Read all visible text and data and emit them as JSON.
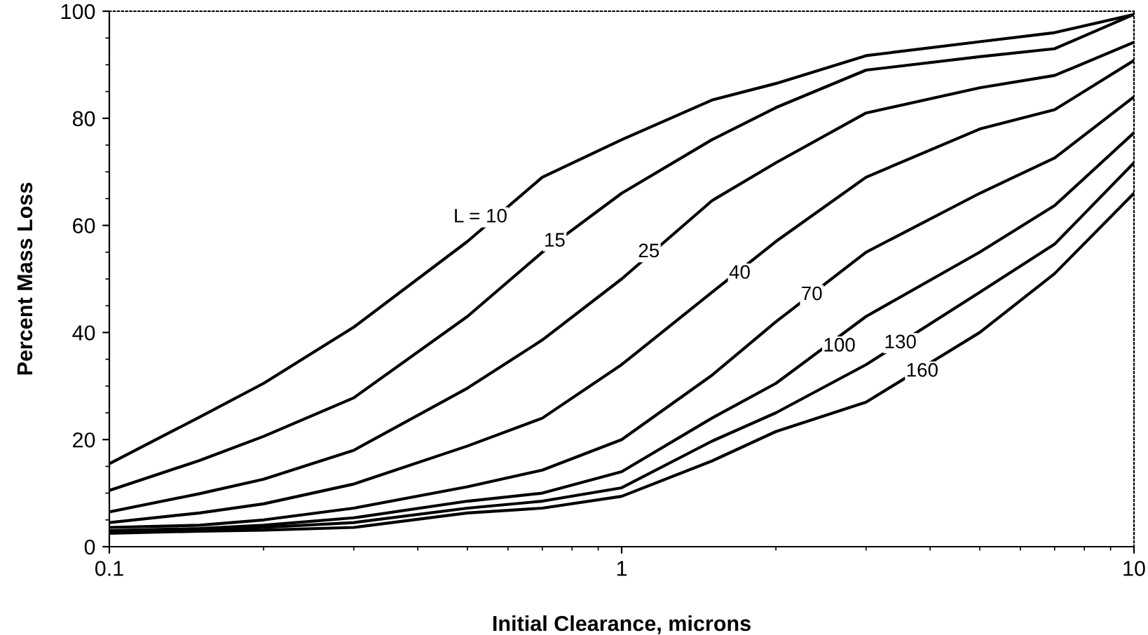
{
  "chart_data": {
    "type": "line",
    "xlabel": "Initial Clearance, microns",
    "ylabel": "Percent Mass Loss",
    "log": "x",
    "x": [
      0.1,
      0.15,
      0.2,
      0.3,
      0.5,
      0.7,
      1,
      1.5,
      2,
      3,
      5,
      7,
      10
    ],
    "xlim": [
      0.1,
      10
    ],
    "xticks": [
      0.1,
      1,
      10
    ],
    "ylim": [
      0,
      100
    ],
    "yticks": [
      0,
      20,
      40,
      60,
      80,
      100
    ],
    "grid": false,
    "marker": "none",
    "line_style": "solid",
    "series": [
      {
        "color": "#000000",
        "values": [
          15.5,
          24.2,
          30.5,
          41,
          57,
          69,
          76,
          83.4,
          86.5,
          91.7,
          94.3,
          96,
          99.4
        ]
      },
      {
        "color": "#000000",
        "values": [
          10.5,
          16.1,
          20.6,
          27.8,
          43,
          55,
          66,
          76,
          82,
          89,
          91.5,
          93,
          99.4
        ]
      },
      {
        "color": "#000000",
        "values": [
          6.5,
          9.9,
          12.6,
          18,
          29.6,
          38.6,
          50,
          64.6,
          71.7,
          81,
          85.7,
          88,
          94.2
        ]
      },
      {
        "color": "#000000",
        "values": [
          4.5,
          6.3,
          8,
          11.7,
          18.8,
          24,
          34,
          47.5,
          57,
          69,
          78,
          81.6,
          90.8
        ]
      },
      {
        "color": "#000000",
        "values": [
          3.6,
          4,
          5,
          7.2,
          11.2,
          14.3,
          20,
          32,
          42,
          55,
          66,
          72.6,
          84
        ]
      },
      {
        "color": "#000000",
        "values": [
          3,
          3.4,
          4,
          5.4,
          8.5,
          10,
          14,
          24,
          30.5,
          43,
          55,
          63.7,
          77.3
        ]
      },
      {
        "color": "#000000",
        "values": [
          2.7,
          3.1,
          3.6,
          4.5,
          7.2,
          8.5,
          11,
          19.7,
          25,
          34,
          47.5,
          56.5,
          71.7
        ]
      },
      {
        "color": "#000000",
        "values": [
          2.5,
          2.9,
          3.1,
          3.6,
          6.3,
          7.2,
          9.4,
          16,
          21.5,
          27,
          40,
          51,
          66
        ]
      }
    ],
    "annotations": [
      {
        "text": "L = 10",
        "x": 0.53,
        "y": 61.5
      },
      {
        "text": "15",
        "x": 0.74,
        "y": 57
      },
      {
        "text": "25",
        "x": 1.13,
        "y": 55
      },
      {
        "text": "40",
        "x": 1.7,
        "y": 51
      },
      {
        "text": "70",
        "x": 2.35,
        "y": 47
      },
      {
        "text": "100",
        "x": 2.66,
        "y": 37.4
      },
      {
        "text": "130",
        "x": 3.5,
        "y": 38
      },
      {
        "text": "160",
        "x": 3.86,
        "y": 32.7
      }
    ]
  }
}
